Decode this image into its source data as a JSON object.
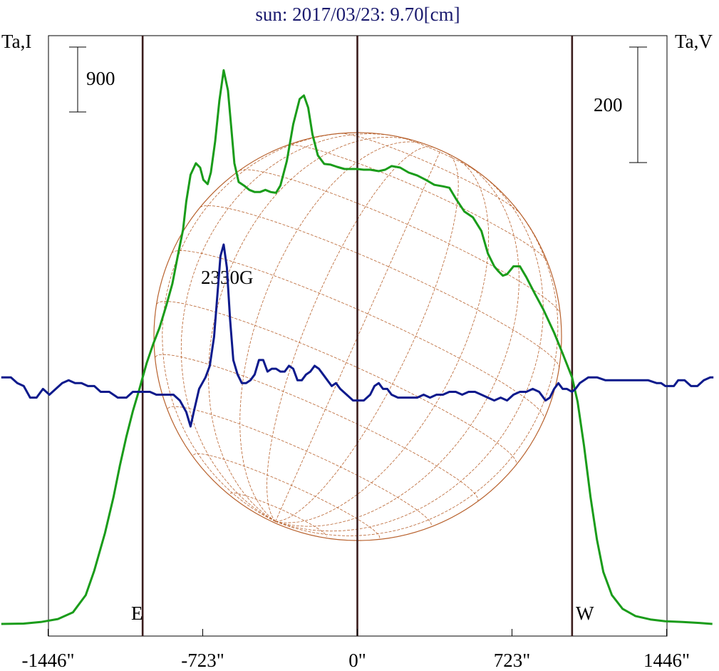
{
  "chart_data": {
    "type": "line",
    "title": "sun: 2017/03/23: 9.70[cm]",
    "ylabel_left": "Ta,I",
    "ylabel_right": "Ta,V",
    "scale_bar_left": "900",
    "scale_bar_right": "200",
    "annotation": "2330G",
    "limb_labels": {
      "east": "E",
      "west": "W"
    },
    "x_unit": "arcsec",
    "xlim": [
      -1660,
      1660
    ],
    "x_ticks": [
      {
        "value": -1446,
        "label": "-1446\""
      },
      {
        "value": -723,
        "label": "-723\""
      },
      {
        "value": 0,
        "label": "0\""
      },
      {
        "value": 723,
        "label": "723\""
      },
      {
        "value": 1446,
        "label": "1446\""
      }
    ],
    "vertical_lines": [
      -1004,
      0,
      1004
    ],
    "colors": {
      "stokes_i": "#1a9c1a",
      "stokes_v": "#0d1a8c",
      "disk": "#b8622e",
      "lines": "#3a1c1c",
      "title": "#1a1a6e"
    },
    "series": [
      {
        "key": "stokes_i",
        "units_per_bar": 900,
        "y0": 0,
        "points": [
          [
            -1665,
            0
          ],
          [
            -1560,
            5
          ],
          [
            -1480,
            27
          ],
          [
            -1400,
            68
          ],
          [
            -1330,
            160
          ],
          [
            -1270,
            400
          ],
          [
            -1230,
            740
          ],
          [
            -1180,
            1260
          ],
          [
            -1140,
            1760
          ],
          [
            -1110,
            2200
          ],
          [
            -1080,
            2600
          ],
          [
            -1050,
            2950
          ],
          [
            -1020,
            3250
          ],
          [
            -1004,
            3420
          ],
          [
            -985,
            3620
          ],
          [
            -955,
            3880
          ],
          [
            -925,
            4110
          ],
          [
            -895,
            4400
          ],
          [
            -865,
            4720
          ],
          [
            -840,
            5100
          ],
          [
            -815,
            5470
          ],
          [
            -800,
            5860
          ],
          [
            -780,
            6230
          ],
          [
            -755,
            6390
          ],
          [
            -735,
            6330
          ],
          [
            -720,
            6160
          ],
          [
            -700,
            6100
          ],
          [
            -685,
            6260
          ],
          [
            -665,
            6690
          ],
          [
            -645,
            7260
          ],
          [
            -625,
            7680
          ],
          [
            -605,
            7400
          ],
          [
            -590,
            6900
          ],
          [
            -575,
            6390
          ],
          [
            -555,
            6130
          ],
          [
            -530,
            6080
          ],
          [
            -505,
            6020
          ],
          [
            -480,
            5990
          ],
          [
            -455,
            5990
          ],
          [
            -430,
            6020
          ],
          [
            -405,
            5990
          ],
          [
            -380,
            5980
          ],
          [
            -360,
            6080
          ],
          [
            -330,
            6420
          ],
          [
            -300,
            6930
          ],
          [
            -270,
            7280
          ],
          [
            -250,
            7330
          ],
          [
            -230,
            7160
          ],
          [
            -210,
            6790
          ],
          [
            -185,
            6500
          ],
          [
            -155,
            6380
          ],
          [
            -125,
            6370
          ],
          [
            -95,
            6340
          ],
          [
            -60,
            6310
          ],
          [
            0,
            6310
          ],
          [
            30,
            6300
          ],
          [
            60,
            6300
          ],
          [
            100,
            6280
          ],
          [
            130,
            6300
          ],
          [
            160,
            6350
          ],
          [
            200,
            6330
          ],
          [
            240,
            6260
          ],
          [
            280,
            6220
          ],
          [
            320,
            6160
          ],
          [
            360,
            6090
          ],
          [
            400,
            6070
          ],
          [
            430,
            6050
          ],
          [
            460,
            5900
          ],
          [
            500,
            5720
          ],
          [
            540,
            5640
          ],
          [
            580,
            5450
          ],
          [
            610,
            5140
          ],
          [
            640,
            4960
          ],
          [
            660,
            4890
          ],
          [
            680,
            4830
          ],
          [
            700,
            4850
          ],
          [
            730,
            4960
          ],
          [
            760,
            4960
          ],
          [
            790,
            4810
          ],
          [
            830,
            4580
          ],
          [
            870,
            4360
          ],
          [
            920,
            4040
          ],
          [
            960,
            3750
          ],
          [
            1004,
            3420
          ],
          [
            1030,
            3080
          ],
          [
            1060,
            2470
          ],
          [
            1090,
            1760
          ],
          [
            1120,
            1170
          ],
          [
            1150,
            720
          ],
          [
            1190,
            400
          ],
          [
            1240,
            210
          ],
          [
            1300,
            110
          ],
          [
            1370,
            62
          ],
          [
            1440,
            37
          ],
          [
            1520,
            27
          ],
          [
            1600,
            14
          ],
          [
            1660,
            0
          ]
        ]
      },
      {
        "key": "stokes_v",
        "units_per_bar": 200,
        "y0": 3420,
        "points": [
          [
            -1665,
            0
          ],
          [
            -1620,
            0
          ],
          [
            -1590,
            -10
          ],
          [
            -1560,
            -15
          ],
          [
            -1530,
            -35
          ],
          [
            -1500,
            -35
          ],
          [
            -1470,
            -20
          ],
          [
            -1440,
            -30
          ],
          [
            -1410,
            -20
          ],
          [
            -1380,
            -10
          ],
          [
            -1350,
            -5
          ],
          [
            -1320,
            -10
          ],
          [
            -1290,
            -10
          ],
          [
            -1260,
            -15
          ],
          [
            -1230,
            -15
          ],
          [
            -1200,
            -25
          ],
          [
            -1160,
            -25
          ],
          [
            -1120,
            -35
          ],
          [
            -1080,
            -35
          ],
          [
            -1050,
            -25
          ],
          [
            -1004,
            -25
          ],
          [
            -970,
            -25
          ],
          [
            -940,
            -30
          ],
          [
            -900,
            -30
          ],
          [
            -860,
            -30
          ],
          [
            -830,
            -40
          ],
          [
            -800,
            -60
          ],
          [
            -780,
            -85
          ],
          [
            -765,
            -60
          ],
          [
            -740,
            -20
          ],
          [
            -710,
            0
          ],
          [
            -690,
            20
          ],
          [
            -670,
            70
          ],
          [
            -655,
            140
          ],
          [
            -640,
            210
          ],
          [
            -625,
            230
          ],
          [
            -610,
            190
          ],
          [
            -595,
            100
          ],
          [
            -580,
            30
          ],
          [
            -560,
            5
          ],
          [
            -540,
            -10
          ],
          [
            -520,
            -10
          ],
          [
            -500,
            -5
          ],
          [
            -480,
            5
          ],
          [
            -460,
            30
          ],
          [
            -440,
            30
          ],
          [
            -420,
            10
          ],
          [
            -400,
            15
          ],
          [
            -380,
            15
          ],
          [
            -360,
            10
          ],
          [
            -340,
            10
          ],
          [
            -320,
            20
          ],
          [
            -300,
            15
          ],
          [
            -280,
            -5
          ],
          [
            -260,
            -5
          ],
          [
            -240,
            5
          ],
          [
            -220,
            10
          ],
          [
            -200,
            20
          ],
          [
            -180,
            15
          ],
          [
            -160,
            5
          ],
          [
            -140,
            -5
          ],
          [
            -120,
            -15
          ],
          [
            -100,
            -10
          ],
          [
            -80,
            -20
          ],
          [
            -50,
            -30
          ],
          [
            -20,
            -40
          ],
          [
            0,
            -40
          ],
          [
            30,
            -40
          ],
          [
            60,
            -30
          ],
          [
            80,
            -15
          ],
          [
            100,
            -10
          ],
          [
            120,
            -20
          ],
          [
            140,
            -20
          ],
          [
            160,
            -30
          ],
          [
            190,
            -35
          ],
          [
            220,
            -35
          ],
          [
            250,
            -35
          ],
          [
            280,
            -35
          ],
          [
            310,
            -30
          ],
          [
            340,
            -35
          ],
          [
            370,
            -30
          ],
          [
            400,
            -30
          ],
          [
            430,
            -25
          ],
          [
            460,
            -25
          ],
          [
            490,
            -30
          ],
          [
            520,
            -25
          ],
          [
            550,
            -25
          ],
          [
            580,
            -30
          ],
          [
            610,
            -35
          ],
          [
            640,
            -40
          ],
          [
            670,
            -35
          ],
          [
            700,
            -40
          ],
          [
            730,
            -30
          ],
          [
            760,
            -25
          ],
          [
            790,
            -25
          ],
          [
            820,
            -20
          ],
          [
            850,
            -25
          ],
          [
            880,
            -40
          ],
          [
            900,
            -35
          ],
          [
            920,
            -20
          ],
          [
            940,
            -10
          ],
          [
            960,
            -20
          ],
          [
            980,
            -20
          ],
          [
            1004,
            -25
          ],
          [
            1020,
            -20
          ],
          [
            1040,
            -10
          ],
          [
            1060,
            -5
          ],
          [
            1080,
            0
          ],
          [
            1120,
            0
          ],
          [
            1160,
            -5
          ],
          [
            1200,
            -5
          ],
          [
            1240,
            -5
          ],
          [
            1280,
            -5
          ],
          [
            1320,
            -5
          ],
          [
            1360,
            -5
          ],
          [
            1400,
            -10
          ],
          [
            1420,
            -10
          ],
          [
            1440,
            -15
          ],
          [
            1480,
            -15
          ],
          [
            1500,
            -5
          ],
          [
            1530,
            -5
          ],
          [
            1560,
            -15
          ],
          [
            1590,
            -15
          ],
          [
            1620,
            -5
          ],
          [
            1650,
            0
          ],
          [
            1665,
            0
          ]
        ]
      }
    ]
  }
}
